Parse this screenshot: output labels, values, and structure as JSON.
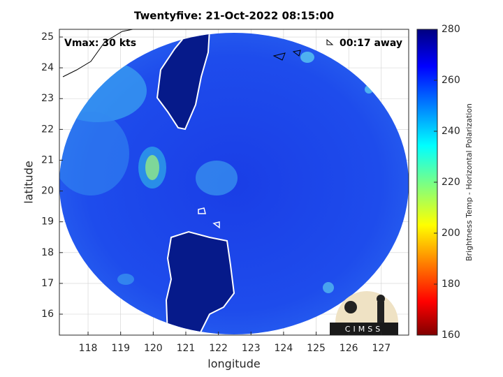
{
  "chart_data": {
    "type": "map",
    "title": "Twentyfive: 21-Oct-2022 08:15:00",
    "xlabel": "longitude",
    "ylabel": "latitude",
    "xlim": [
      117.12,
      127.84
    ],
    "ylim": [
      15.32,
      25.25
    ],
    "xticks": [
      118,
      119,
      120,
      121,
      122,
      123,
      124,
      125,
      126,
      127
    ],
    "yticks": [
      16,
      17,
      18,
      19,
      20,
      21,
      22,
      23,
      24,
      25
    ],
    "grid": true,
    "colorbar": {
      "label": "Brightness Temp - Horizontal Polarization",
      "lim": [
        160,
        280
      ],
      "ticks": [
        160,
        180,
        200,
        220,
        240,
        260,
        280
      ],
      "colormap": "jet"
    },
    "annotations": [
      "Vmax: 30 kts",
      "00:17 away"
    ],
    "logo": "CIMSS"
  }
}
